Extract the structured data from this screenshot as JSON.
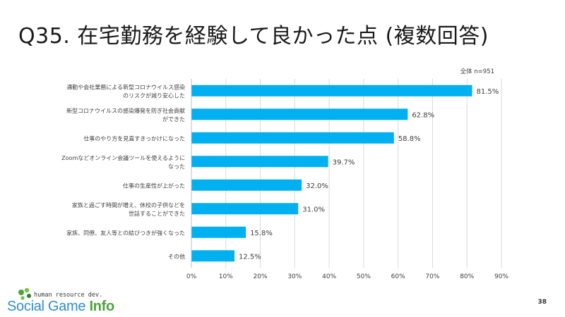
{
  "title": "Q35. 在宅勤務を経験して良かった点 (複数回答)",
  "page_number": "38",
  "logo": {
    "tagline": "human resource dev.",
    "name_part1": "Social Game ",
    "name_part2": "Info"
  },
  "colors": {
    "bar": "#00B0F0",
    "grid": "#d9d9d9",
    "text": "#404040"
  },
  "chart_data": {
    "type": "bar",
    "orientation": "horizontal",
    "annotation": "全体 n=951",
    "categories": [
      [
        "通勤や会社業務による新型コロナウイルス感染",
        "のリスクが減り安心した"
      ],
      [
        "新型コロナウイルスの感染爆発を防ぎ社会貢献",
        "ができた"
      ],
      [
        "仕事のやり方を見直すきっかけになった"
      ],
      [
        "Zoomなどオンライン会議ツールを使えるように",
        "なった"
      ],
      [
        "仕事の生産性が上がった"
      ],
      [
        "家族と過ごす時間が増え、休校の子供などを",
        "世話することができた"
      ],
      [
        "家族、同僚、友人等との結びつきが強くなった"
      ],
      [
        "その他"
      ]
    ],
    "values": [
      81.5,
      62.8,
      58.8,
      39.7,
      32.0,
      31.0,
      15.8,
      12.5
    ],
    "value_labels": [
      "81.5%",
      "62.8%",
      "58.8%",
      "39.7%",
      "32.0%",
      "31.0%",
      "15.8%",
      "12.5%"
    ],
    "xlim": [
      0,
      90
    ],
    "xticks": [
      0,
      10,
      20,
      30,
      40,
      50,
      60,
      70,
      80,
      90
    ],
    "xtick_labels": [
      "0%",
      "10%",
      "20%",
      "30%",
      "40%",
      "50%",
      "60%",
      "70%",
      "80%",
      "90%"
    ],
    "grid": true,
    "xlabel": "",
    "ylabel": ""
  }
}
